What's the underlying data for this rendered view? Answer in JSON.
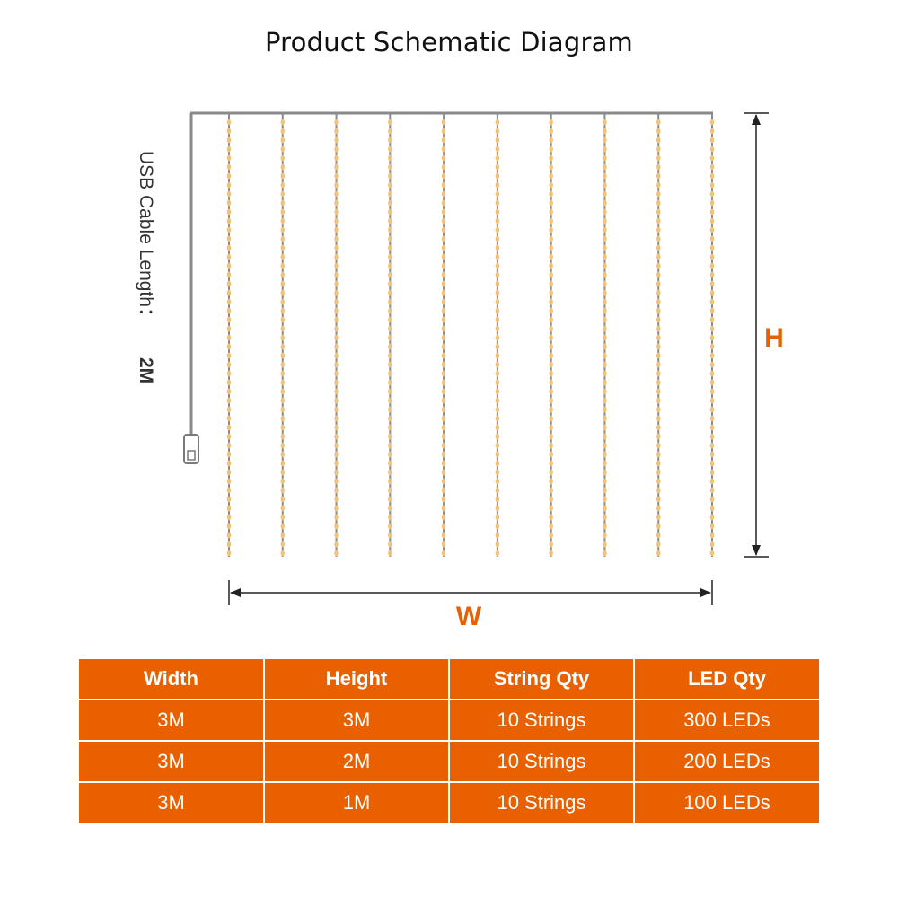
{
  "title": "Product Schematic Diagram",
  "cable": {
    "label": "USB Cable Length：",
    "value": "2M"
  },
  "dimensions": {
    "height_label": "H",
    "width_label": "W"
  },
  "colors": {
    "accent": "#e86000",
    "wire": "#8a8a8a",
    "led": "#f0c27a",
    "text": "#111111"
  },
  "icons": [
    "usb-plug-icon"
  ],
  "curtain": {
    "string_count": 10
  },
  "table": {
    "headers": [
      "Width",
      "Height",
      "String Qty",
      "LED Qty"
    ],
    "rows": [
      [
        "3M",
        "3M",
        "10 Strings",
        "300 LEDs"
      ],
      [
        "3M",
        "2M",
        "10 Strings",
        "200 LEDs"
      ],
      [
        "3M",
        "1M",
        "10 Strings",
        "100 LEDs"
      ]
    ]
  }
}
